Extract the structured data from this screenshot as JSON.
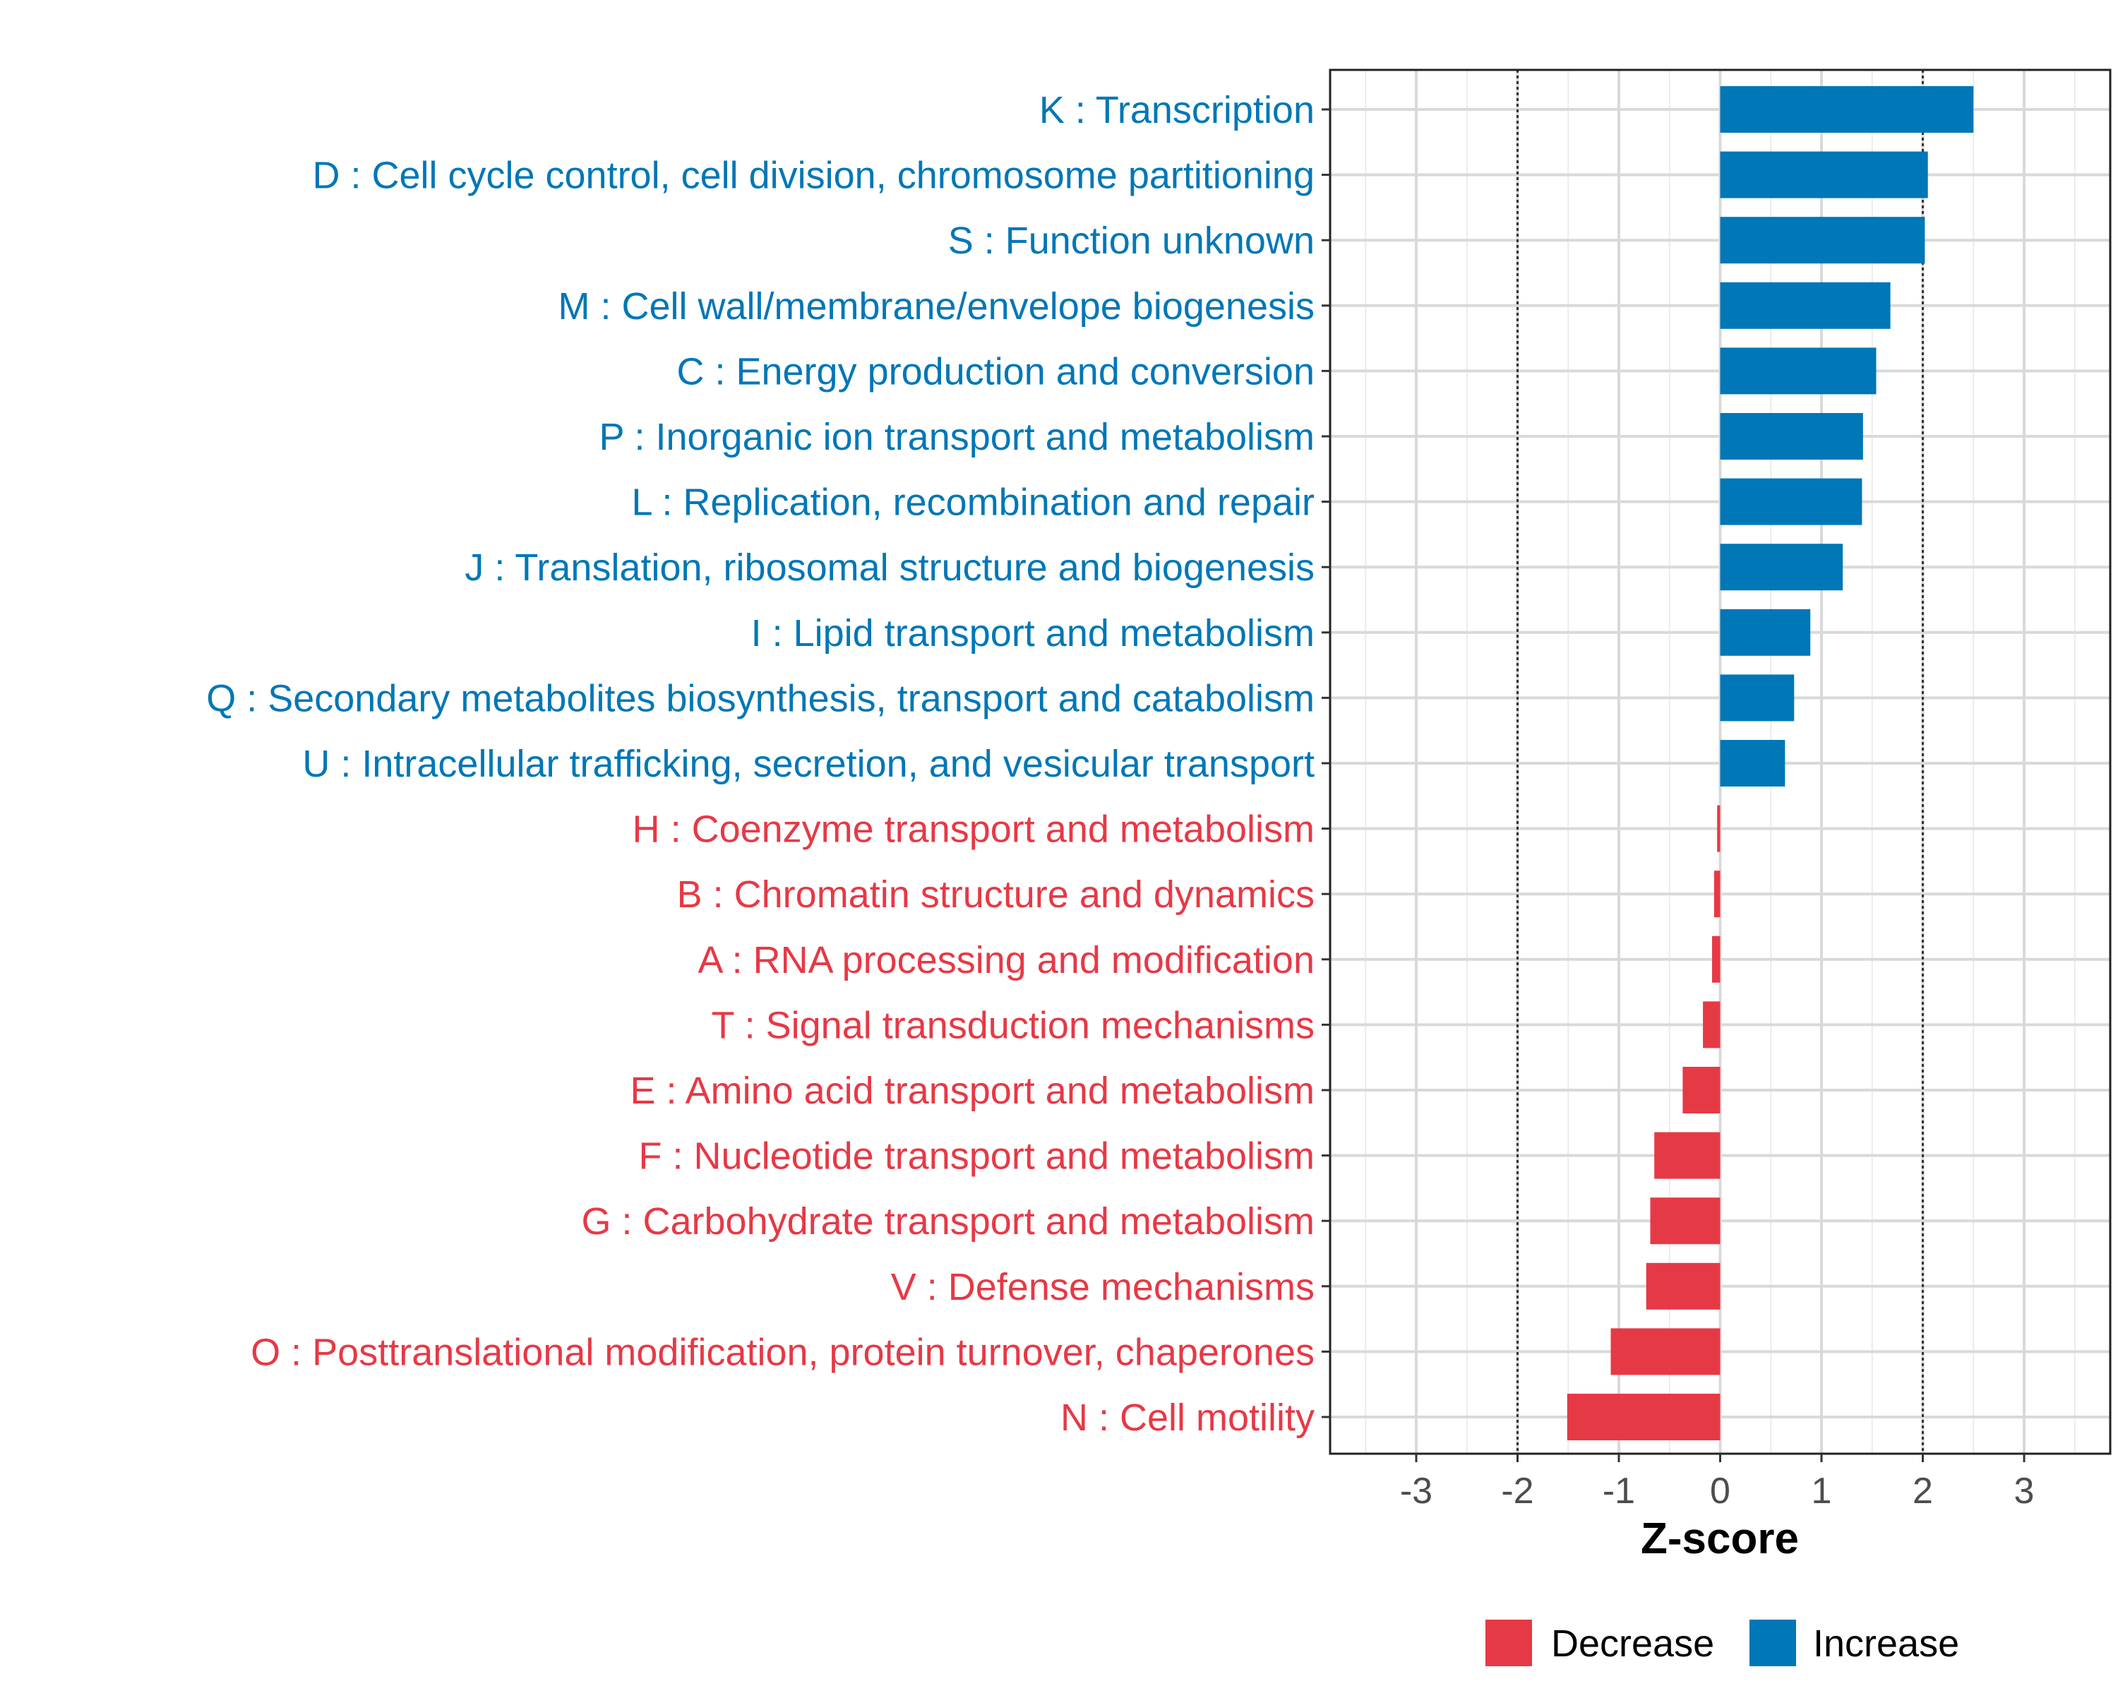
{
  "chart_data": {
    "type": "bar",
    "orientation": "horizontal",
    "xlabel": "Z-score",
    "ylabel": "",
    "xlim": [
      -3.85,
      3.85
    ],
    "xticks": [
      -3,
      -2,
      -1,
      0,
      1,
      2,
      3
    ],
    "reference_lines": [
      -2,
      2
    ],
    "grid": true,
    "legend_position": "bottom",
    "colors": {
      "increase": "#0077B6",
      "decrease": "#E63946"
    },
    "legend": [
      {
        "key": "decrease",
        "label": "Decrease"
      },
      {
        "key": "increase",
        "label": "Increase"
      }
    ],
    "categories": [
      {
        "label": "K : Transcription",
        "value": 2.5,
        "direction": "increase"
      },
      {
        "label": "D : Cell cycle control, cell division, chromosome partitioning",
        "value": 2.05,
        "direction": "increase"
      },
      {
        "label": "S : Function unknown",
        "value": 2.02,
        "direction": "increase"
      },
      {
        "label": "M : Cell wall/membrane/envelope biogenesis",
        "value": 1.68,
        "direction": "increase"
      },
      {
        "label": "C : Energy production and conversion",
        "value": 1.54,
        "direction": "increase"
      },
      {
        "label": "P : Inorganic ion transport and metabolism",
        "value": 1.41,
        "direction": "increase"
      },
      {
        "label": "L : Replication, recombination and repair",
        "value": 1.4,
        "direction": "increase"
      },
      {
        "label": "J : Translation, ribosomal structure and biogenesis",
        "value": 1.21,
        "direction": "increase"
      },
      {
        "label": "I : Lipid transport and metabolism",
        "value": 0.89,
        "direction": "increase"
      },
      {
        "label": "Q : Secondary metabolites biosynthesis, transport and catabolism",
        "value": 0.73,
        "direction": "increase"
      },
      {
        "label": "U : Intracellular trafficking, secretion, and vesicular transport",
        "value": 0.64,
        "direction": "increase"
      },
      {
        "label": "H : Coenzyme transport and metabolism",
        "value": -0.03,
        "direction": "decrease"
      },
      {
        "label": "B : Chromatin structure and dynamics",
        "value": -0.06,
        "direction": "decrease"
      },
      {
        "label": "A : RNA processing and modification",
        "value": -0.08,
        "direction": "decrease"
      },
      {
        "label": "T : Signal transduction mechanisms",
        "value": -0.17,
        "direction": "decrease"
      },
      {
        "label": "E : Amino acid transport and metabolism",
        "value": -0.37,
        "direction": "decrease"
      },
      {
        "label": "F : Nucleotide transport and metabolism",
        "value": -0.65,
        "direction": "decrease"
      },
      {
        "label": "G : Carbohydrate transport and metabolism",
        "value": -0.69,
        "direction": "decrease"
      },
      {
        "label": "V : Defense mechanisms",
        "value": -0.73,
        "direction": "decrease"
      },
      {
        "label": "O : Posttranslational modification, protein turnover, chaperones",
        "value": -1.08,
        "direction": "decrease"
      },
      {
        "label": "N : Cell motility",
        "value": -1.51,
        "direction": "decrease"
      }
    ]
  }
}
